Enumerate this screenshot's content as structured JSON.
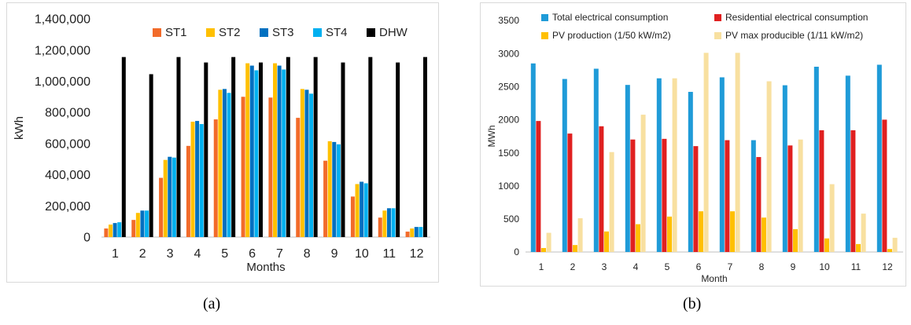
{
  "captions": {
    "a": "(a)",
    "b": "(b)"
  },
  "chart_data": [
    {
      "type": "bar",
      "title": "",
      "xlabel": "Months",
      "ylabel": "kWh",
      "ylim": [
        0,
        1400000
      ],
      "yticks": [
        0,
        200000,
        400000,
        600000,
        800000,
        1000000,
        1200000,
        1400000
      ],
      "ytick_labels": [
        "0",
        "200,000",
        "400,000",
        "600,000",
        "800,000",
        "1,000,000",
        "1,200,000",
        "1,400,000"
      ],
      "grid": false,
      "legend": "top",
      "categories": [
        "1",
        "2",
        "3",
        "4",
        "5",
        "6",
        "7",
        "8",
        "9",
        "10",
        "11",
        "12"
      ],
      "series": [
        {
          "name": "ST1",
          "color": "#f26b2a",
          "values": [
            55000,
            110000,
            380000,
            585000,
            755000,
            900000,
            895000,
            765000,
            490000,
            260000,
            125000,
            35000
          ]
        },
        {
          "name": "ST2",
          "color": "#ffc000",
          "values": [
            80000,
            155000,
            495000,
            740000,
            945000,
            1115000,
            1115000,
            950000,
            615000,
            340000,
            170000,
            55000
          ]
        },
        {
          "name": "ST3",
          "color": "#0070c0",
          "values": [
            90000,
            170000,
            515000,
            745000,
            950000,
            1100000,
            1100000,
            945000,
            610000,
            355000,
            185000,
            65000
          ]
        },
        {
          "name": "ST4",
          "color": "#00b0f0",
          "values": [
            95000,
            170000,
            510000,
            725000,
            925000,
            1070000,
            1075000,
            920000,
            595000,
            345000,
            185000,
            65000
          ]
        },
        {
          "name": "DHW",
          "color": "#000000",
          "values": [
            1155000,
            1045000,
            1155000,
            1120000,
            1155000,
            1120000,
            1155000,
            1155000,
            1120000,
            1155000,
            1120000,
            1155000
          ]
        }
      ]
    },
    {
      "type": "bar",
      "title": "",
      "xlabel": "Month",
      "ylabel": "MWh",
      "ylim": [
        0,
        3500
      ],
      "yticks": [
        0,
        500,
        1000,
        1500,
        2000,
        2500,
        3000,
        3500
      ],
      "ytick_labels": [
        "0",
        "500",
        "1000",
        "1500",
        "2000",
        "2500",
        "3000",
        "3500"
      ],
      "grid": false,
      "legend": "top",
      "categories": [
        "1",
        "2",
        "3",
        "4",
        "5",
        "6",
        "7",
        "8",
        "9",
        "10",
        "11",
        "12"
      ],
      "series": [
        {
          "name": "Total electrical consumption",
          "color": "#1f9bd8",
          "values": [
            2850,
            2615,
            2770,
            2525,
            2625,
            2420,
            2640,
            1690,
            2520,
            2800,
            2665,
            2830
          ]
        },
        {
          "name": "Residential electrical consumption",
          "color": "#e02020",
          "values": [
            1980,
            1790,
            1900,
            1700,
            1710,
            1600,
            1690,
            1435,
            1610,
            1840,
            1840,
            2000
          ]
        },
        {
          "name": "PV production (1/50 kW/m2)",
          "color": "#ffc000",
          "values": [
            60,
            105,
            310,
            420,
            535,
            615,
            615,
            520,
            345,
            205,
            120,
            45
          ]
        },
        {
          "name": "PV max producible (1/11 kW/m2)",
          "color": "#f8e0a0",
          "values": [
            290,
            510,
            1510,
            2075,
            2625,
            3010,
            3010,
            2580,
            1700,
            1025,
            580,
            215
          ]
        }
      ]
    }
  ]
}
